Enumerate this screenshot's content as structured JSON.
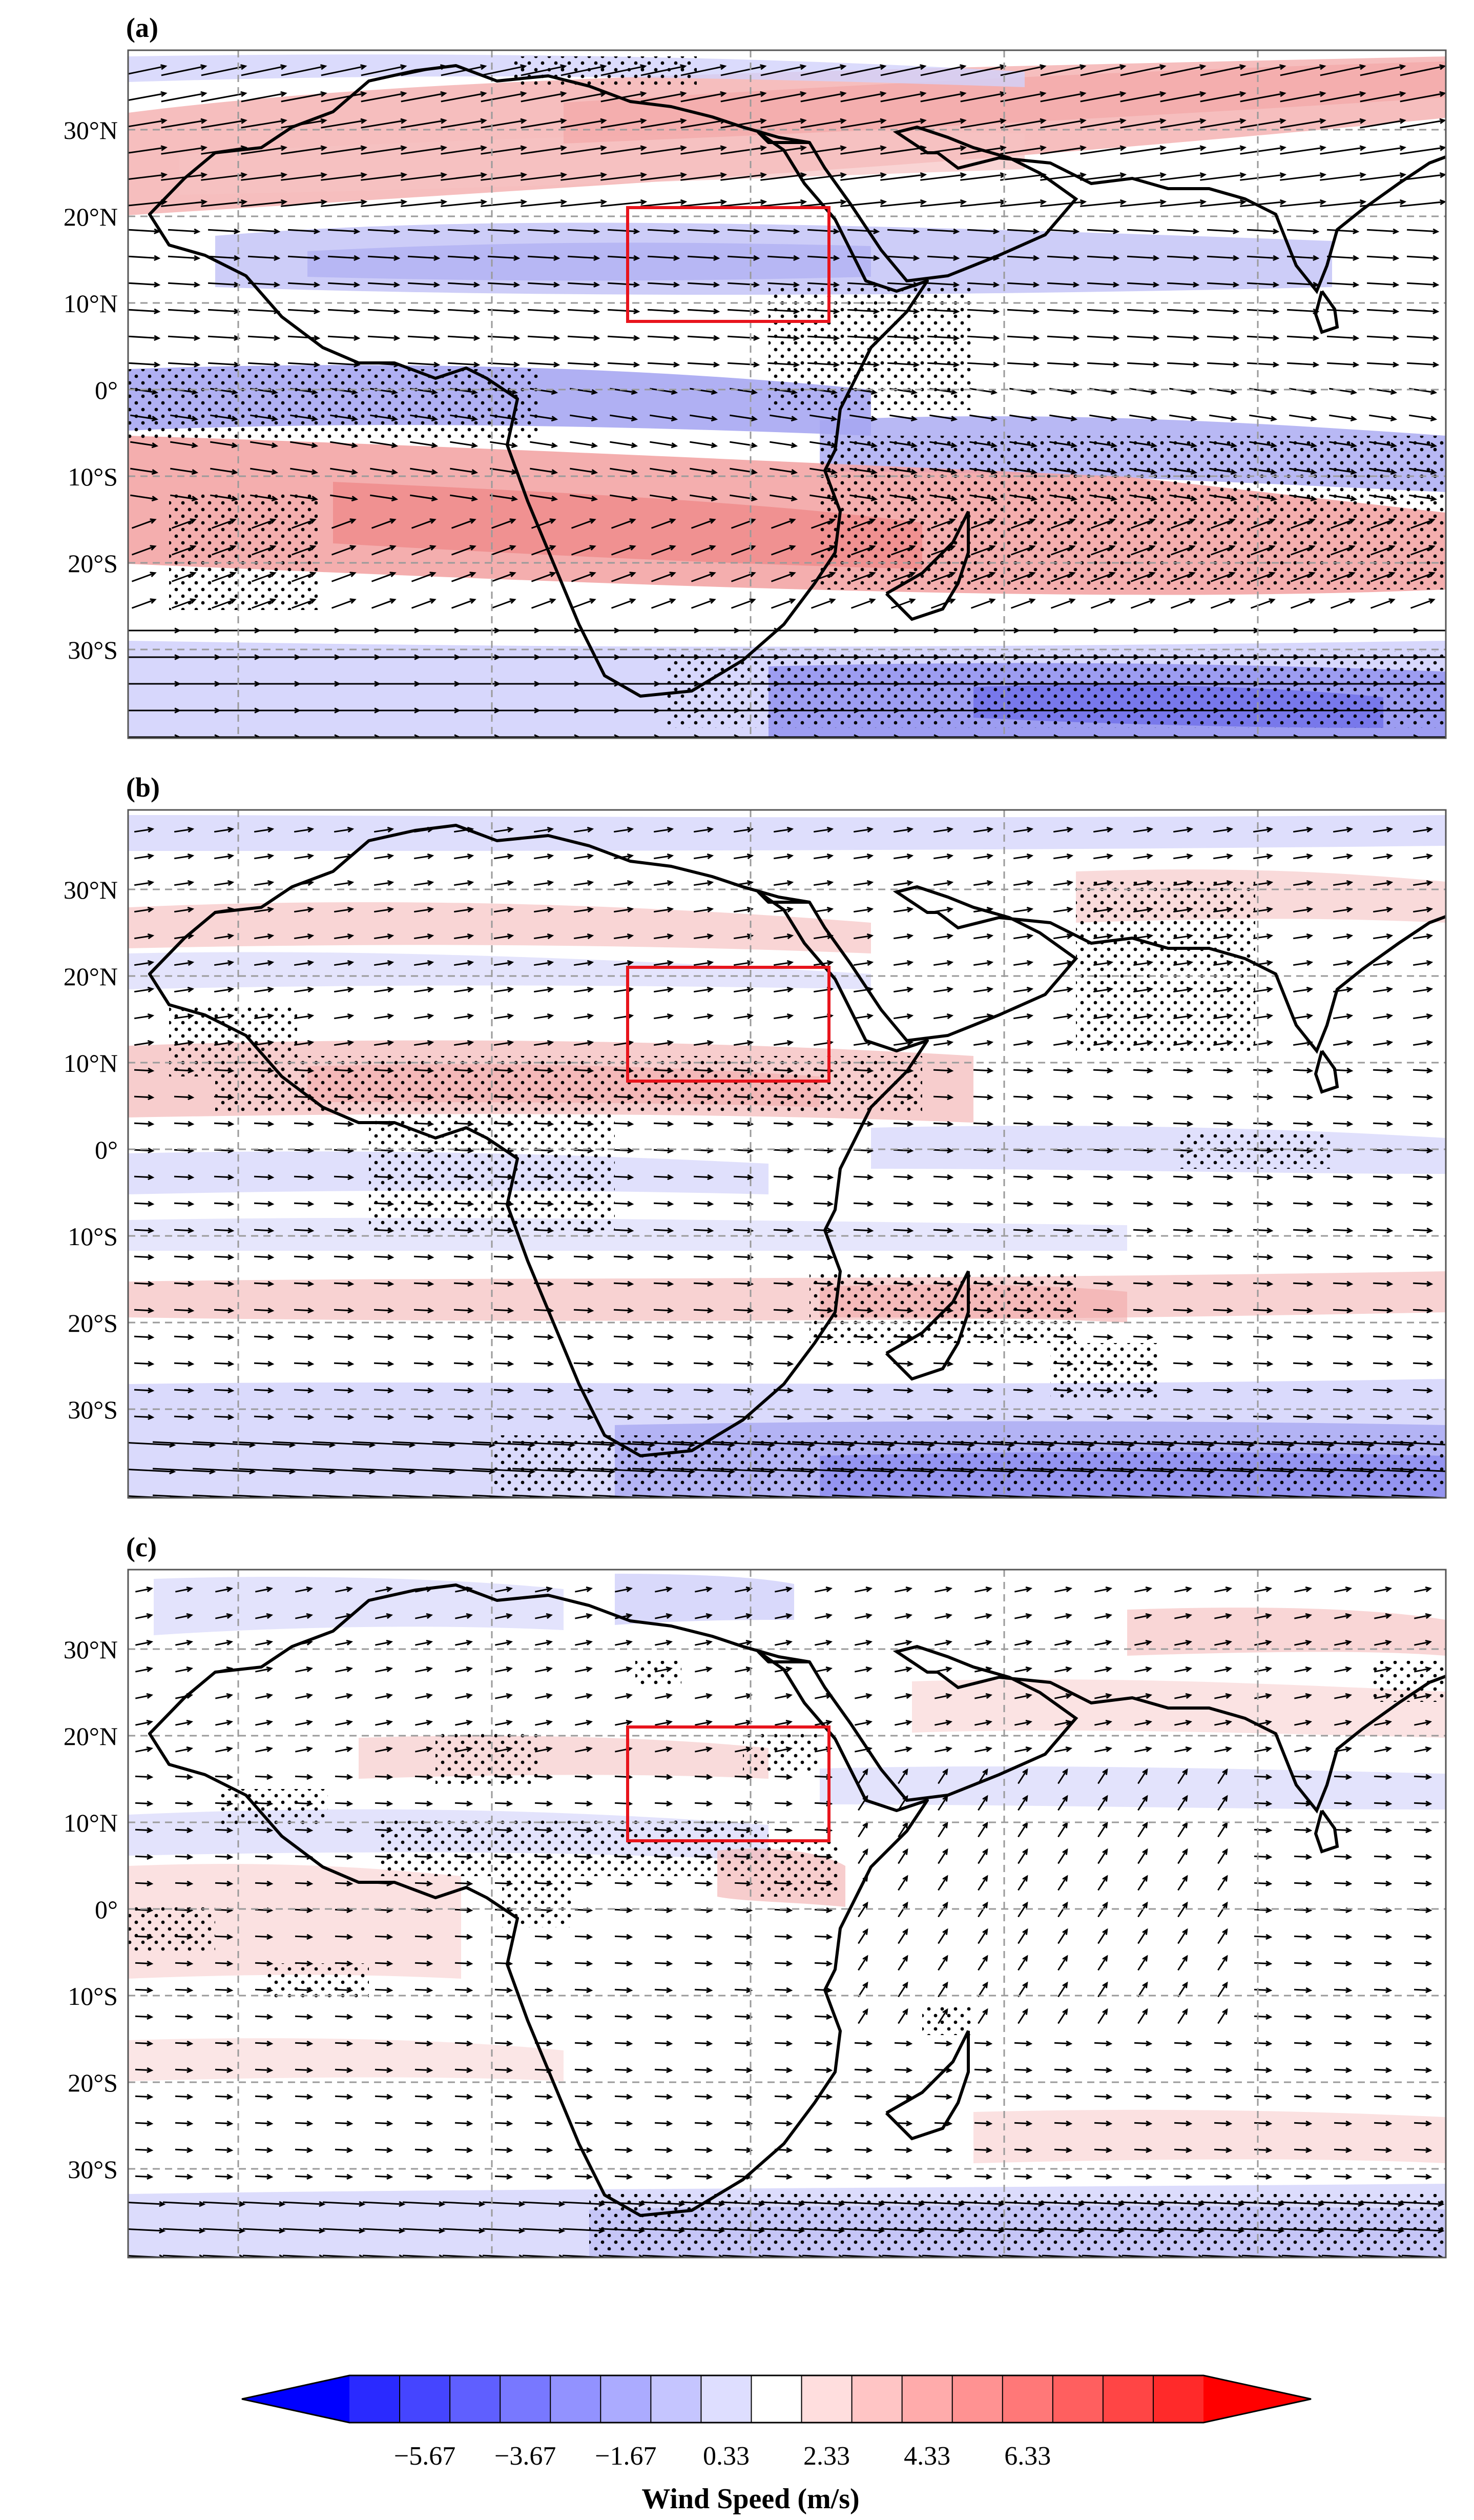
{
  "figure": {
    "panels": [
      {
        "id": "a",
        "label": "(a)"
      },
      {
        "id": "b",
        "label": "(b)"
      },
      {
        "id": "c",
        "label": "(c)"
      }
    ],
    "lat_labels": [
      "30°N",
      "20°N",
      "10°N",
      "0°",
      "10°S",
      "20°S",
      "30°S"
    ],
    "colorbar": {
      "title": "Wind Speed (m/s)",
      "tick_labels": [
        "−5.67",
        "−3.67",
        "−1.67",
        "0.33",
        "2.33",
        "4.33",
        "6.33"
      ],
      "colors": [
        "#0000ff",
        "#2a2aff",
        "#4545ff",
        "#5f5fff",
        "#7878ff",
        "#9292ff",
        "#ababff",
        "#c5c5ff",
        "#dedeff",
        "#ffffff",
        "#ffdede",
        "#ffc5c5",
        "#ffabab",
        "#ff9292",
        "#ff7878",
        "#ff5f5f",
        "#ff4545",
        "#ff2a2a",
        "#ff0000"
      ]
    },
    "style": {
      "box_color": "#e8141c",
      "coast_color": "#000000",
      "grid_color": "#9a9a9a"
    }
  }
}
